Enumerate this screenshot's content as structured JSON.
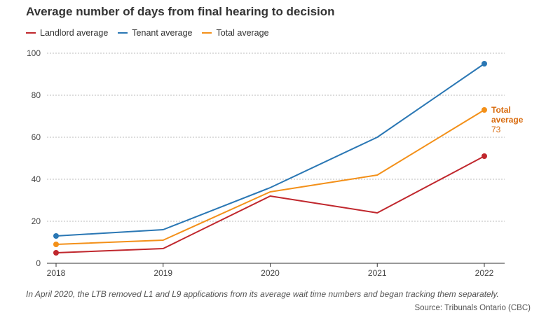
{
  "chart_data": {
    "type": "line",
    "title": "Average number of days from final hearing to decision",
    "x": [
      "2018",
      "2019",
      "2020",
      "2021",
      "2022"
    ],
    "series": [
      {
        "name": "Landlord average",
        "color": "#c0272d",
        "values": [
          5,
          7,
          32,
          24,
          51
        ]
      },
      {
        "name": "Tenant average",
        "color": "#2a77b4",
        "values": [
          13,
          16,
          36,
          60,
          95
        ]
      },
      {
        "name": "Total average",
        "color": "#f39019",
        "values": [
          9,
          11,
          34,
          42,
          73
        ]
      }
    ],
    "ylim": [
      0,
      100
    ],
    "yticks": [
      0,
      20,
      40,
      60,
      80,
      100
    ],
    "grid": true,
    "legend": "top-left",
    "annotation": {
      "line1": "Total",
      "line2": "average",
      "value": "73",
      "color": "#d86a0c"
    }
  },
  "note": "In April 2020, the LTB removed L1 and L9 applications from its average wait time numbers and began tracking them separately.",
  "source": "Source: Tribunals Ontario (CBC)"
}
